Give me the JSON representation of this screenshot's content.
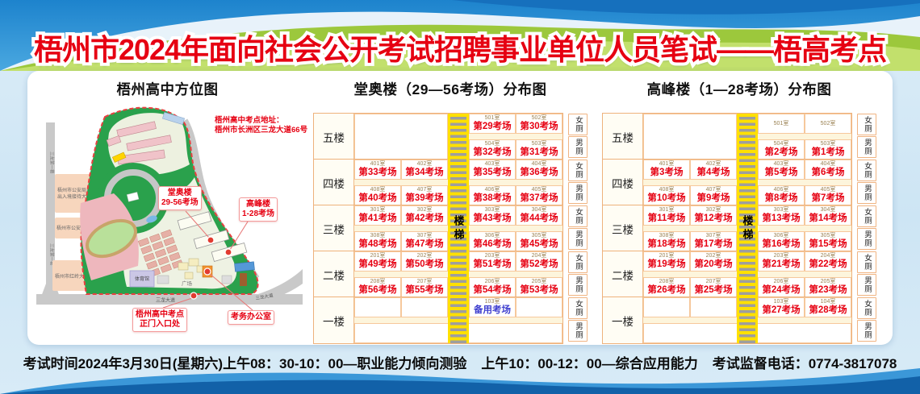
{
  "banner": {
    "title": "梧州市2024年面向社会公开考试招聘事业单位人员笔试——梧高考点"
  },
  "footer": {
    "part1": "考试时间2024年3月30日(星期六)上午08：30-10：00—职业能力倾向测验",
    "part2": "上午10：00-12：00—综合应用能力",
    "part3": "考试监督电话：0774-3817078"
  },
  "map": {
    "title": "梧州高中方位图",
    "address1": "梧州高中考点地址：",
    "address2": "梧州市长洲区三龙大道66号",
    "road_left_top": "三龙第一巷",
    "road_left_bottom": "三龙第一巷",
    "road_bottom": "三龙大道",
    "road_bottom_right": "三龙大道",
    "police_hall_1": "梧州市公安局",
    "police_hall_2": "出入境接待大厅",
    "police": "梧州市公安局",
    "hongling": "梧州市红岭大厦",
    "gym": "体育馆",
    "square": "广场",
    "callouts": {
      "tangao1": "堂奥楼",
      "tangao2": "29-56考场",
      "gaofeng1": "高峰楼",
      "gaofeng2": "1-28考场",
      "gate1": "梧州高中考点",
      "gate2": "正门入口处",
      "office": "考务办公室"
    }
  },
  "tangao": {
    "title": "堂奥楼（29—56考场）分布图",
    "stair": "楼梯",
    "floors": [
      {
        "name": "五楼",
        "left_merged": true,
        "top": [
          {
            "room": "501室",
            "exam": "第29考场"
          },
          {
            "room": "502室",
            "exam": "第30考场"
          }
        ],
        "bottom": [
          {
            "room": "504室",
            "exam": "第32考场"
          },
          {
            "room": "503室",
            "exam": "第31考场"
          }
        ],
        "toilets": [
          "女厕",
          "男厕"
        ]
      },
      {
        "name": "四楼",
        "top": [
          {
            "room": "401室",
            "exam": "第33考场"
          },
          {
            "room": "402室",
            "exam": "第34考场"
          },
          {
            "room": "403室",
            "exam": "第35考场"
          },
          {
            "room": "404室",
            "exam": "第36考场"
          }
        ],
        "bottom": [
          {
            "room": "408室",
            "exam": "第40考场"
          },
          {
            "room": "407室",
            "exam": "第39考场"
          },
          {
            "room": "406室",
            "exam": "第38考场"
          },
          {
            "room": "405室",
            "exam": "第37考场"
          }
        ],
        "toilets": [
          "女厕",
          "男厕"
        ]
      },
      {
        "name": "三楼",
        "top": [
          {
            "room": "301室",
            "exam": "第41考场"
          },
          {
            "room": "302室",
            "exam": "第42考场"
          },
          {
            "room": "303室",
            "exam": "第43考场"
          },
          {
            "room": "304室",
            "exam": "第44考场"
          }
        ],
        "bottom": [
          {
            "room": "308室",
            "exam": "第48考场"
          },
          {
            "room": "307室",
            "exam": "第47考场"
          },
          {
            "room": "306室",
            "exam": "第46考场"
          },
          {
            "room": "305室",
            "exam": "第45考场"
          }
        ],
        "toilets": [
          "女厕",
          "男厕"
        ]
      },
      {
        "name": "二楼",
        "top": [
          {
            "room": "201室",
            "exam": "第49考场"
          },
          {
            "room": "202室",
            "exam": "第50考场"
          },
          {
            "room": "203室",
            "exam": "第51考场"
          },
          {
            "room": "204室",
            "exam": "第52考场"
          }
        ],
        "bottom": [
          {
            "room": "208室",
            "exam": "第56考场"
          },
          {
            "room": "207室",
            "exam": "第55考场"
          },
          {
            "room": "206室",
            "exam": "第54考场"
          },
          {
            "room": "205室",
            "exam": "第53考场"
          }
        ],
        "toilets": [
          "女厕",
          "男厕"
        ]
      },
      {
        "name": "一楼",
        "bottom_merged": true,
        "top": [
          {
            "room": "",
            "exam": ""
          },
          {
            "room": "",
            "exam": ""
          },
          {
            "room": "103室",
            "exam": "备用考场",
            "alt": true
          },
          {
            "room": "",
            "exam": ""
          }
        ],
        "toilets": [
          "女厕",
          "男厕"
        ]
      }
    ]
  },
  "gaofeng": {
    "title": "高峰楼（1—28考场）分布图",
    "stair": "楼梯",
    "floors": [
      {
        "name": "五楼",
        "left_merged": true,
        "top": [
          {
            "room": "501室",
            "exam": ""
          },
          {
            "room": "502室",
            "exam": ""
          }
        ],
        "bottom": [
          {
            "room": "504室",
            "exam": "第2考场"
          },
          {
            "room": "503室",
            "exam": "第1考场"
          }
        ],
        "toilets": [
          "女厕",
          "男厕"
        ]
      },
      {
        "name": "四楼",
        "top": [
          {
            "room": "401室",
            "exam": "第3考场"
          },
          {
            "room": "402室",
            "exam": "第4考场"
          },
          {
            "room": "403室",
            "exam": "第5考场"
          },
          {
            "room": "404室",
            "exam": "第6考场"
          }
        ],
        "bottom": [
          {
            "room": "408室",
            "exam": "第10考场"
          },
          {
            "room": "407室",
            "exam": "第9考场"
          },
          {
            "room": "406室",
            "exam": "第8考场"
          },
          {
            "room": "405室",
            "exam": "第7考场"
          }
        ],
        "toilets": [
          "女厕",
          "男厕"
        ]
      },
      {
        "name": "三楼",
        "top": [
          {
            "room": "301室",
            "exam": "第11考场"
          },
          {
            "room": "302室",
            "exam": "第12考场"
          },
          {
            "room": "303室",
            "exam": "第13考场"
          },
          {
            "room": "304室",
            "exam": "第14考场"
          }
        ],
        "bottom": [
          {
            "room": "308室",
            "exam": "第18考场"
          },
          {
            "room": "307室",
            "exam": "第17考场"
          },
          {
            "room": "306室",
            "exam": "第16考场"
          },
          {
            "room": "305室",
            "exam": "第15考场"
          }
        ],
        "toilets": [
          "女厕",
          "男厕"
        ]
      },
      {
        "name": "二楼",
        "top": [
          {
            "room": "201室",
            "exam": "第19考场"
          },
          {
            "room": "202室",
            "exam": "第20考场"
          },
          {
            "room": "203室",
            "exam": "第21考场"
          },
          {
            "room": "204室",
            "exam": "第22考场"
          }
        ],
        "bottom": [
          {
            "room": "208室",
            "exam": "第26考场"
          },
          {
            "room": "207室",
            "exam": "第25考场"
          },
          {
            "room": "206室",
            "exam": "第24考场"
          },
          {
            "room": "205室",
            "exam": "第23考场"
          }
        ],
        "toilets": [
          "女厕",
          "男厕"
        ]
      },
      {
        "name": "一楼",
        "bottom_merged": true,
        "top": [
          {
            "room": "",
            "exam": ""
          },
          {
            "room": "",
            "exam": ""
          },
          {
            "room": "103室",
            "exam": "第27考场"
          },
          {
            "room": "104室",
            "exam": "第28考场"
          }
        ],
        "toilets": [
          "女厕",
          "男厕"
        ]
      }
    ]
  }
}
